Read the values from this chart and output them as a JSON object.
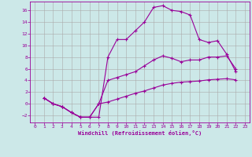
{
  "xlabel": "Windchill (Refroidissement éolien,°C)",
  "bg_color": "#cce8e8",
  "line_color": "#990099",
  "grid_color": "#aaaaaa",
  "xlim": [
    -0.5,
    23.5
  ],
  "ylim": [
    -3.2,
    17.5
  ],
  "yticks": [
    -2,
    0,
    2,
    4,
    6,
    8,
    10,
    12,
    14,
    16
  ],
  "xticks": [
    0,
    1,
    2,
    3,
    4,
    5,
    6,
    7,
    8,
    9,
    10,
    11,
    12,
    13,
    14,
    15,
    16,
    17,
    18,
    19,
    20,
    21,
    22,
    23
  ],
  "curve1_x": [
    1,
    2,
    3,
    4,
    5,
    6,
    7,
    8,
    9,
    10,
    11,
    12,
    13,
    14,
    15,
    16,
    17,
    18,
    19,
    20,
    21,
    22
  ],
  "curve1_y": [
    1,
    0,
    -0.5,
    -1.5,
    -2.3,
    -2.3,
    -2.3,
    8,
    11,
    11,
    12.5,
    14,
    16.5,
    16.8,
    16,
    15.8,
    15.2,
    11,
    10.5,
    10.8,
    8.5,
    5.5
  ],
  "curve2_x": [
    1,
    2,
    3,
    4,
    5,
    6,
    7,
    8,
    9,
    10,
    11,
    12,
    13,
    14,
    15,
    16,
    17,
    18,
    19,
    20,
    21,
    22
  ],
  "curve2_y": [
    1,
    0,
    -0.5,
    -1.5,
    -2.3,
    -2.3,
    0,
    4,
    4.5,
    5,
    5.5,
    6.5,
    7.5,
    8.2,
    7.8,
    7.2,
    7.5,
    7.5,
    8,
    8,
    8.2,
    6
  ],
  "curve3_x": [
    1,
    2,
    3,
    4,
    5,
    6,
    7,
    8,
    9,
    10,
    11,
    12,
    13,
    14,
    15,
    16,
    17,
    18,
    19,
    20,
    21,
    22
  ],
  "curve3_y": [
    1,
    0,
    -0.5,
    -1.5,
    -2.3,
    -2.3,
    0,
    0.3,
    0.8,
    1.3,
    1.8,
    2.2,
    2.7,
    3.2,
    3.5,
    3.7,
    3.8,
    3.9,
    4.1,
    4.2,
    4.3,
    4.1
  ]
}
